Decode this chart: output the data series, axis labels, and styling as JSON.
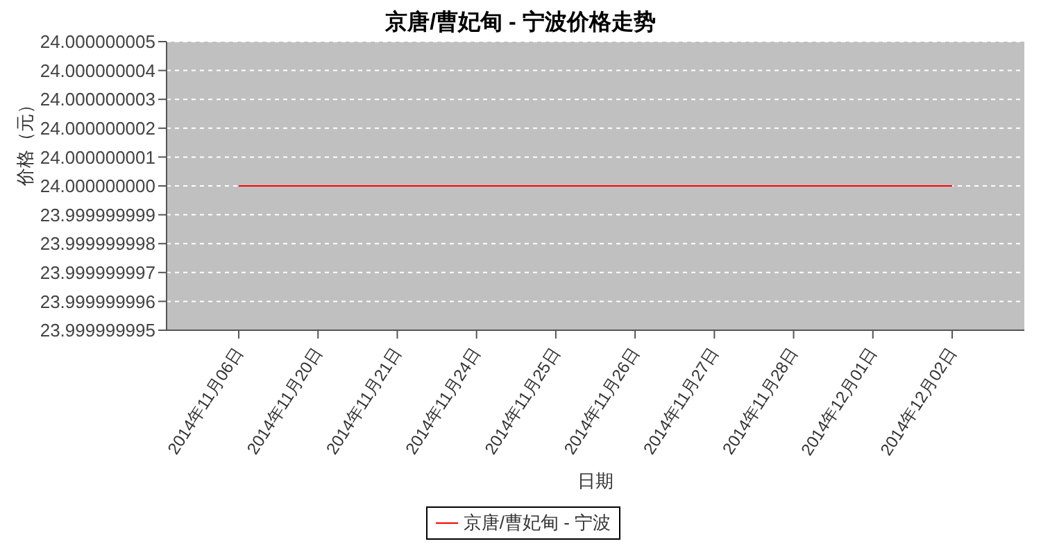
{
  "chart_data": {
    "type": "line",
    "title": "京唐/曹妃甸  - 宁波价格走势",
    "xlabel": "日期",
    "ylabel": "价格（元）",
    "categories": [
      "2014年11月06日",
      "2014年11月20日",
      "2014年11月21日",
      "2014年11月24日",
      "2014年11月25日",
      "2014年11月26日",
      "2014年11月27日",
      "2014年11月28日",
      "2014年12月01日",
      "2014年12月02日"
    ],
    "series": [
      {
        "name": "京唐/曹妃甸  - 宁波",
        "color": "#ff0000",
        "values": [
          24,
          24,
          24,
          24,
          24,
          24,
          24,
          24,
          24,
          24
        ]
      }
    ],
    "ylim": [
      23.999999995,
      24.000000005
    ],
    "yticks": [
      {
        "value": 23.999999995,
        "label": "23.999999995"
      },
      {
        "value": 23.999999996,
        "label": "23.999999996"
      },
      {
        "value": 23.999999997,
        "label": "23.999999997"
      },
      {
        "value": 23.999999998,
        "label": "23.999999998"
      },
      {
        "value": 23.999999999,
        "label": "23.999999999"
      },
      {
        "value": 24,
        "label": "24.000000000"
      },
      {
        "value": 24.000000001,
        "label": "24.000000001"
      },
      {
        "value": 24.000000002,
        "label": "24.000000002"
      },
      {
        "value": 24.000000003,
        "label": "24.000000003"
      },
      {
        "value": 24.000000004,
        "label": "24.000000004"
      },
      {
        "value": 24.000000005,
        "label": "24.000000005"
      }
    ],
    "grid": "y",
    "legend": "bottom",
    "marker": "none",
    "line_style": "solid"
  }
}
